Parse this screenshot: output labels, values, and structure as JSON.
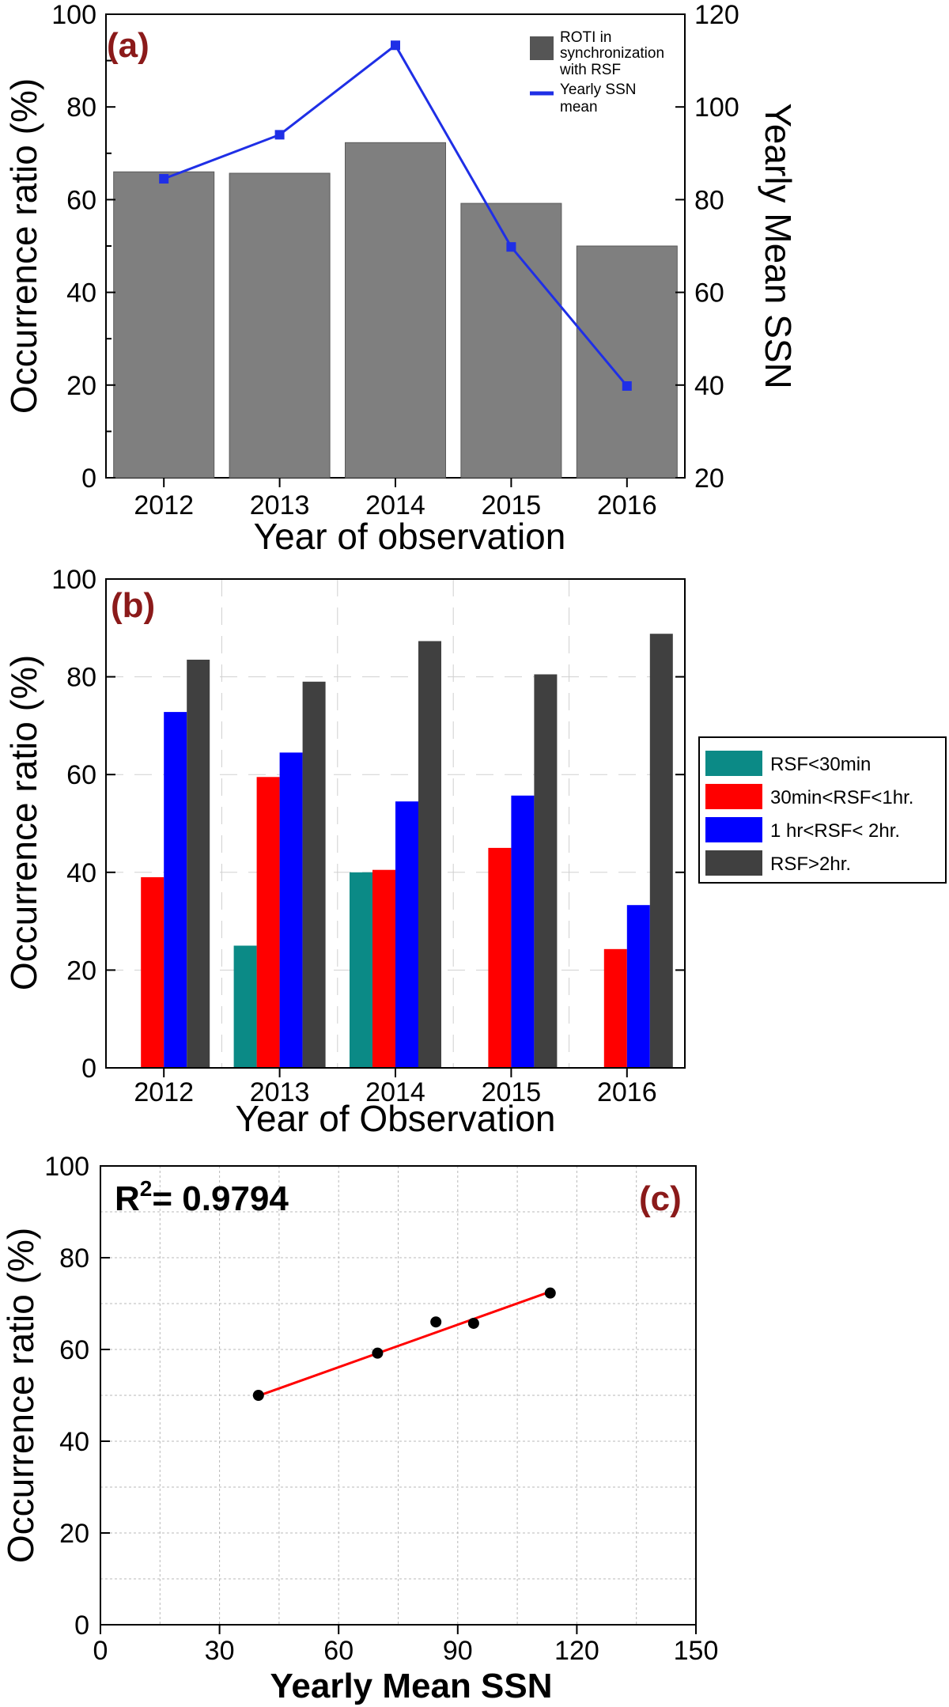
{
  "chart_data": [
    {
      "panel": "(a)",
      "type": "bar",
      "categories": [
        "2012",
        "2013",
        "2014",
        "2015",
        "2016"
      ],
      "values": [
        66,
        65.7,
        72.3,
        59.2,
        50
      ],
      "ylabel": "Occurrence ratio (%)",
      "xlabel": "Year of observation",
      "ylim": [
        0,
        100
      ],
      "yticks": [
        "0",
        "20",
        "40",
        "60",
        "80",
        "100"
      ],
      "y2label": "Yearly Mean SSN",
      "y2lim": [
        20,
        120
      ],
      "y2ticks": [
        "20",
        "40",
        "60",
        "80",
        "100",
        "120"
      ],
      "line_series": {
        "name": "Yearly SSN mean",
        "values": [
          84.5,
          94,
          113.3,
          69.8,
          39.8
        ]
      },
      "legend": {
        "bar_label": "ROTI in synchronization with RSF",
        "line_label": "Yearly SSN mean",
        "placement": "top-right"
      },
      "colors": {
        "bar": "#7f7f7f",
        "line": "#1f2fe6",
        "label": "#8b1a1a"
      }
    },
    {
      "panel": "(b)",
      "type": "bar",
      "categories": [
        "2012",
        "2013",
        "2014",
        "2015",
        "2016"
      ],
      "series": [
        {
          "name": "RSF<30min",
          "values": [
            0,
            25,
            40,
            0,
            0
          ],
          "color": "#0b8a86"
        },
        {
          "name": "30min<RSF<1hr.",
          "values": [
            39,
            59.5,
            40.5,
            45,
            24.3
          ],
          "color": "#ff0000"
        },
        {
          "name": "1 hr<RSF< 2hr.",
          "values": [
            72.8,
            64.5,
            54.5,
            55.7,
            33.3
          ],
          "color": "#0000ff"
        },
        {
          "name": "RSF>2hr.",
          "values": [
            83.5,
            79,
            87.3,
            80.5,
            88.8
          ],
          "color": "#404040"
        }
      ],
      "ylabel": "Occurrence ratio (%)",
      "xlabel": "Year of Observation",
      "ylim": [
        0,
        100
      ],
      "yticks": [
        "0",
        "20",
        "40",
        "60",
        "80",
        "100"
      ],
      "legend_placement": "right"
    },
    {
      "panel": "(c)",
      "type": "scatter",
      "points": [
        {
          "x": 39.8,
          "y": 50
        },
        {
          "x": 69.8,
          "y": 59.2
        },
        {
          "x": 84.5,
          "y": 66
        },
        {
          "x": 94,
          "y": 65.7
        },
        {
          "x": 113.3,
          "y": 72.3
        }
      ],
      "fit_line": {
        "x": [
          39.8,
          113.3
        ],
        "y": [
          49.9,
          72.6
        ]
      },
      "annotation": {
        "r_prefix": "R",
        "r_sup": "2",
        "r_value": "= 0.9794"
      },
      "ylabel": "Occurrence ratio (%)",
      "xlabel": "Yearly Mean SSN",
      "xlim": [
        0,
        150
      ],
      "ylim": [
        0,
        100
      ],
      "xticks": [
        "0",
        "30",
        "60",
        "90",
        "120",
        "150"
      ],
      "yticks": [
        "0",
        "20",
        "40",
        "60",
        "80",
        "100"
      ],
      "colors": {
        "fit": "#ff0000",
        "point": "#000000"
      }
    }
  ]
}
